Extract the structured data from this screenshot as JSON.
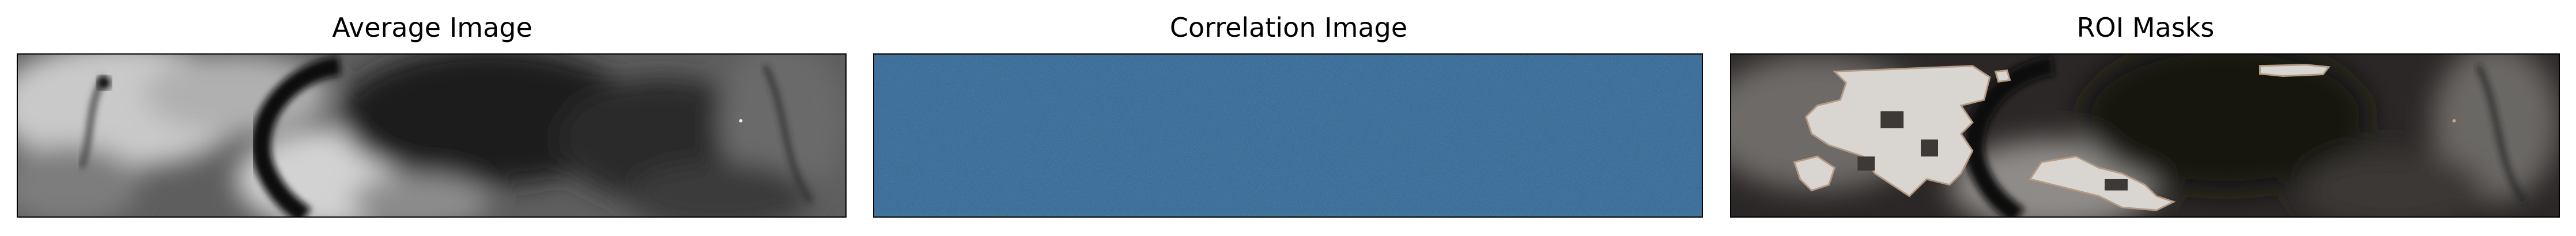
{
  "panels": [
    {
      "title": "Average Image"
    },
    {
      "title": "Correlation Image"
    },
    {
      "title": "ROI Masks"
    }
  ],
  "colors": {
    "correlation_base": "#2a5d8f",
    "mask_fill": "#d9d6d2",
    "mask_edge": "#b49a82",
    "tissue_dark": "#1b1918"
  }
}
